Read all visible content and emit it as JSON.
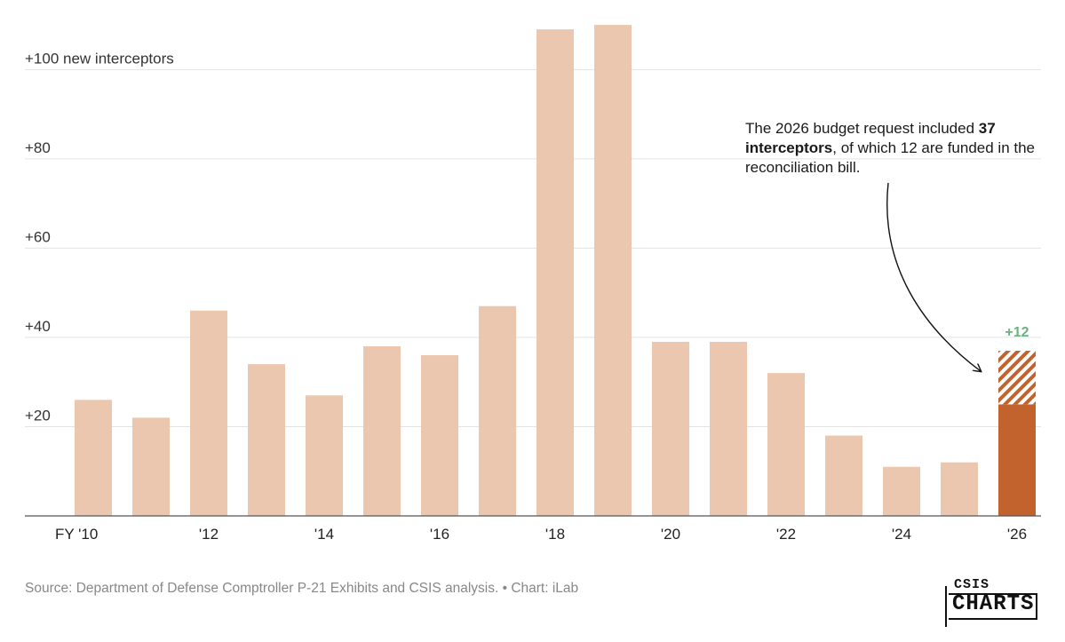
{
  "chart_data": {
    "type": "bar",
    "ylabel_prefix": "+",
    "top_tick_suffix": " new interceptors",
    "y_ticks": [
      20,
      40,
      60,
      80,
      100
    ],
    "ylim": [
      0,
      112
    ],
    "categories": [
      "2010",
      "2011",
      "2012",
      "2013",
      "2014",
      "2015",
      "2016",
      "2017",
      "2018",
      "2019",
      "2020",
      "2021",
      "2022",
      "2023",
      "2024",
      "2025",
      "2026"
    ],
    "x_tick_labels": [
      "FY '10",
      "",
      "'12",
      "",
      "'14",
      "",
      "'16",
      "",
      "'18",
      "",
      "'20",
      "",
      "'22",
      "",
      "'24",
      "",
      "'26"
    ],
    "values": [
      26,
      22,
      46,
      34,
      27,
      38,
      36,
      47,
      109,
      110,
      39,
      39,
      32,
      18,
      11,
      12,
      25
    ],
    "reconciliation_addition": {
      "category": "2026",
      "value": 12,
      "label": "+12",
      "total": 37
    },
    "colors": {
      "bar": "#ECC7AF",
      "highlight": "#C2632D",
      "hatch": "#C2632D",
      "added_label": "#6BB27F",
      "grid": "#E3E3E3",
      "axis": "#555555"
    }
  },
  "annotation": {
    "text_before": "The 2026 budget request included ",
    "bold": "37 interceptors",
    "text_after": ", of which 12 are funded in the reconciliation bill."
  },
  "source": "Source: Department of Defense Comptroller P-21 Exhibits and CSIS analysis. • Chart: iLab",
  "logo": {
    "line1": "CSIS",
    "line2": "CHARTS"
  }
}
